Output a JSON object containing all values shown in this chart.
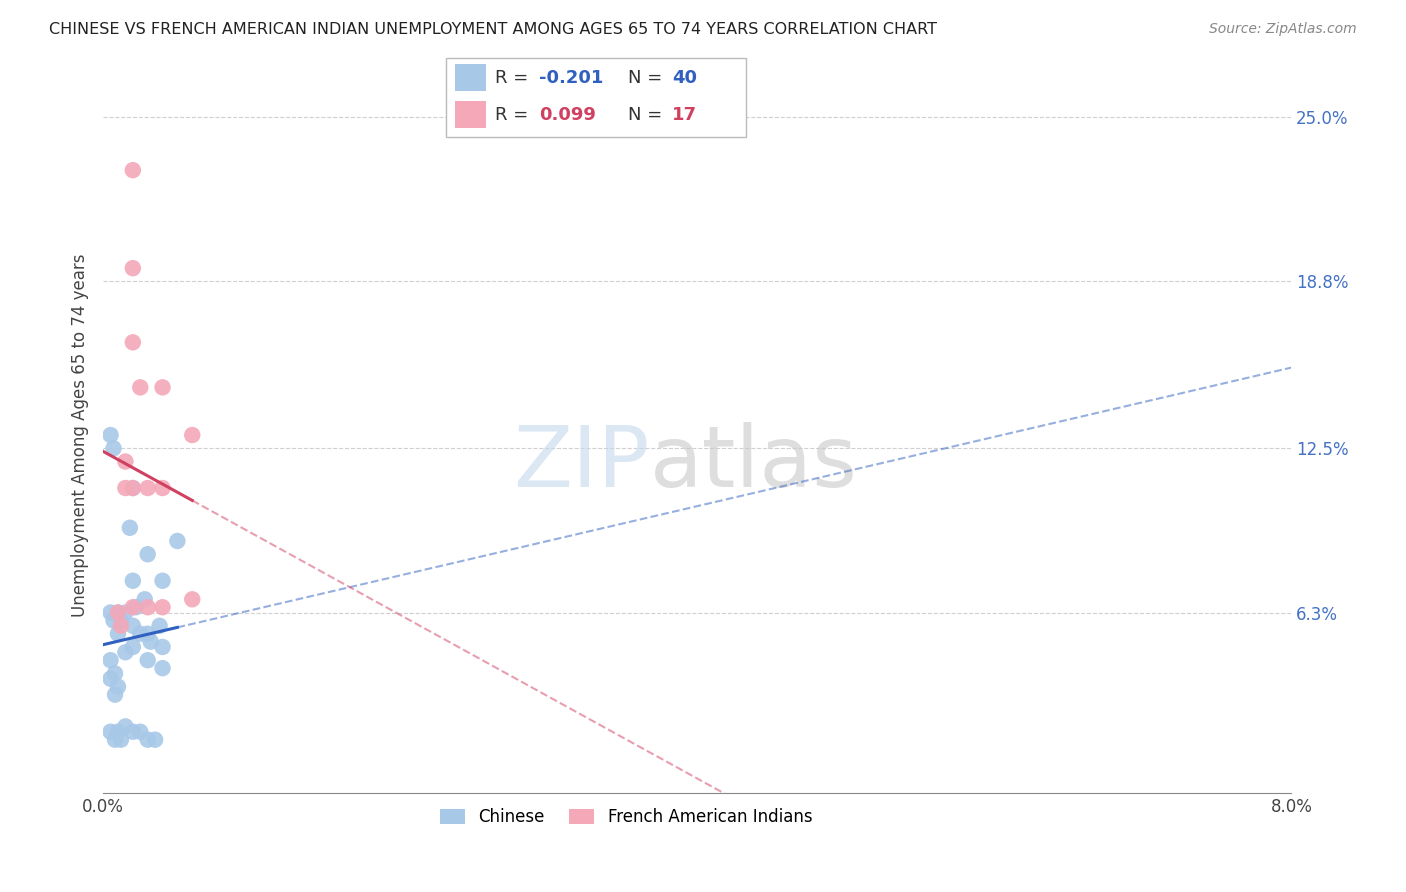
{
  "title": "CHINESE VS FRENCH AMERICAN INDIAN UNEMPLOYMENT AMONG AGES 65 TO 74 YEARS CORRELATION CHART",
  "source": "Source: ZipAtlas.com",
  "ylabel": "Unemployment Among Ages 65 to 74 years",
  "xlim": [
    0.0,
    0.08
  ],
  "ylim": [
    -0.005,
    0.265
  ],
  "ytick_labels_right": [
    "6.3%",
    "12.5%",
    "18.8%",
    "25.0%"
  ],
  "ytick_positions_right": [
    0.063,
    0.125,
    0.188,
    0.25
  ],
  "chinese_color": "#a8c8e8",
  "french_color": "#f4a8b8",
  "chinese_line_color": "#3060c0",
  "french_line_color": "#d04060",
  "legend_chinese_label": "Chinese",
  "legend_french_label": "French American Indians",
  "R_chinese": -0.201,
  "N_chinese": 40,
  "R_french": 0.099,
  "N_french": 17,
  "chinese_points": [
    [
      0.0005,
      0.13
    ],
    [
      0.0007,
      0.125
    ],
    [
      0.001,
      0.063
    ],
    [
      0.0012,
      0.06
    ],
    [
      0.001,
      0.055
    ],
    [
      0.0015,
      0.048
    ],
    [
      0.0005,
      0.045
    ],
    [
      0.0008,
      0.04
    ],
    [
      0.0005,
      0.038
    ],
    [
      0.001,
      0.035
    ],
    [
      0.0008,
      0.032
    ],
    [
      0.0005,
      0.063
    ],
    [
      0.0007,
      0.06
    ],
    [
      0.002,
      0.11
    ],
    [
      0.0018,
      0.095
    ],
    [
      0.002,
      0.075
    ],
    [
      0.0022,
      0.065
    ],
    [
      0.0015,
      0.063
    ],
    [
      0.002,
      0.058
    ],
    [
      0.0025,
      0.055
    ],
    [
      0.002,
      0.05
    ],
    [
      0.003,
      0.085
    ],
    [
      0.0028,
      0.068
    ],
    [
      0.003,
      0.055
    ],
    [
      0.0032,
      0.052
    ],
    [
      0.003,
      0.045
    ],
    [
      0.004,
      0.075
    ],
    [
      0.0038,
      0.058
    ],
    [
      0.004,
      0.05
    ],
    [
      0.004,
      0.042
    ],
    [
      0.0005,
      0.018
    ],
    [
      0.0008,
      0.015
    ],
    [
      0.001,
      0.018
    ],
    [
      0.0012,
      0.015
    ],
    [
      0.0015,
      0.02
    ],
    [
      0.002,
      0.018
    ],
    [
      0.0025,
      0.018
    ],
    [
      0.003,
      0.015
    ],
    [
      0.0035,
      0.015
    ],
    [
      0.005,
      0.09
    ]
  ],
  "french_points": [
    [
      0.001,
      0.063
    ],
    [
      0.0012,
      0.058
    ],
    [
      0.0015,
      0.12
    ],
    [
      0.0015,
      0.11
    ],
    [
      0.002,
      0.23
    ],
    [
      0.002,
      0.193
    ],
    [
      0.002,
      0.165
    ],
    [
      0.0025,
      0.148
    ],
    [
      0.002,
      0.11
    ],
    [
      0.003,
      0.11
    ],
    [
      0.002,
      0.065
    ],
    [
      0.003,
      0.065
    ],
    [
      0.004,
      0.148
    ],
    [
      0.004,
      0.11
    ],
    [
      0.004,
      0.065
    ],
    [
      0.006,
      0.13
    ],
    [
      0.006,
      0.068
    ]
  ],
  "watermark_zip": "ZIP",
  "watermark_atlas": "atlas",
  "background_color": "#ffffff",
  "grid_color": "#d0d0d0",
  "title_color": "#222222",
  "axis_label_color": "#444444",
  "right_tick_color": "#4472c4",
  "source_color": "#888888",
  "chinese_trend_start_x": 0.0,
  "chinese_trend_end_solid_x": 0.005,
  "chinese_trend_end_x": 0.08,
  "french_trend_start_x": 0.0,
  "french_trend_end_solid_x": 0.006,
  "french_trend_end_x": 0.08
}
